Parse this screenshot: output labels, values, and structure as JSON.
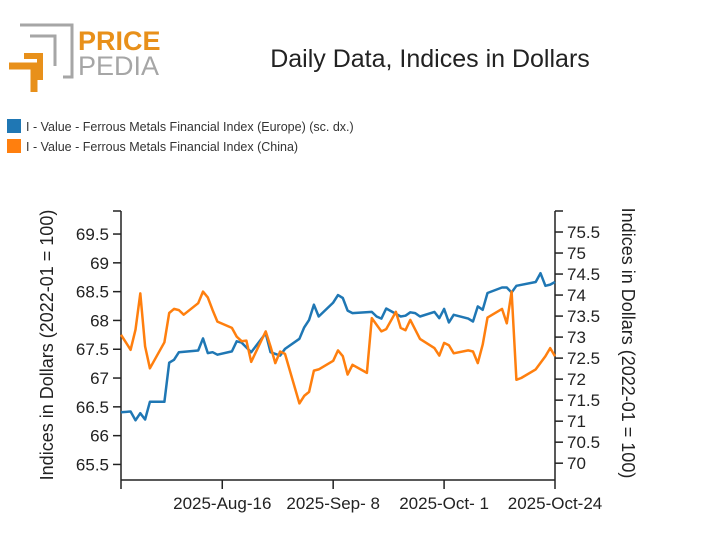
{
  "logo": {
    "text_top": "PRICE",
    "text_bottom": "PEDIA",
    "colors": {
      "orange": "#e8901a",
      "gray": "#a6a6a6"
    }
  },
  "chart_data": {
    "type": "line",
    "title": "Daily Data, Indices in Dollars",
    "ylabel_left": "Indices in Dollars (2022-01 = 100)",
    "ylabel_right": "Indices in Dollars (2022-01 = 100)",
    "xlim": [
      "2025-07-26",
      "2025-10-24"
    ],
    "ylim_left": [
      65.23,
      69.9
    ],
    "ylim_right": [
      69.6,
      76.0
    ],
    "x_ticks": [
      {
        "date": "2025-07-26",
        "label": ""
      },
      {
        "date": "2025-08-16",
        "label": "2025-Aug-16"
      },
      {
        "date": "2025-09-08",
        "label": "2025-Sep- 8"
      },
      {
        "date": "2025-10-01",
        "label": "2025-Oct- 1"
      },
      {
        "date": "2025-10-24",
        "label": "2025-Oct-24"
      }
    ],
    "y_ticks_left": [
      "65.5",
      "66",
      "66.5",
      "67",
      "67.5",
      "68",
      "68.5",
      "69",
      "69.5"
    ],
    "y_ticks_right": [
      "70",
      "70.5",
      "71",
      "71.5",
      "72",
      "72.5",
      "73",
      "73.5",
      "74",
      "74.5",
      "75",
      "75.5"
    ],
    "grid": false,
    "legend_position": "top-left",
    "series": [
      {
        "name": "I - Value - Ferrous Metals Financial Index (Europe) (sc. dx.)",
        "axis": "right",
        "color": "#1f77b4",
        "points": [
          [
            "2025-07-26",
            71.21
          ],
          [
            "2025-07-28",
            71.23
          ],
          [
            "2025-07-29",
            71.02
          ],
          [
            "2025-07-30",
            71.19
          ],
          [
            "2025-07-31",
            71.04
          ],
          [
            "2025-08-01",
            71.46
          ],
          [
            "2025-08-04",
            71.46
          ],
          [
            "2025-08-05",
            72.39
          ],
          [
            "2025-08-06",
            72.46
          ],
          [
            "2025-08-07",
            72.64
          ],
          [
            "2025-08-11",
            72.68
          ],
          [
            "2025-08-12",
            72.97
          ],
          [
            "2025-08-13",
            72.62
          ],
          [
            "2025-08-14",
            72.64
          ],
          [
            "2025-08-15",
            72.58
          ],
          [
            "2025-08-18",
            72.66
          ],
          [
            "2025-08-19",
            72.9
          ],
          [
            "2025-08-20",
            72.87
          ],
          [
            "2025-08-22",
            72.64
          ],
          [
            "2025-08-25",
            73.09
          ],
          [
            "2025-08-26",
            72.64
          ],
          [
            "2025-08-28",
            72.56
          ],
          [
            "2025-08-29",
            72.72
          ],
          [
            "2025-09-01",
            72.96
          ],
          [
            "2025-09-02",
            73.23
          ],
          [
            "2025-09-03",
            73.41
          ],
          [
            "2025-09-04",
            73.77
          ],
          [
            "2025-09-05",
            73.49
          ],
          [
            "2025-09-08",
            73.82
          ],
          [
            "2025-09-09",
            74.0
          ],
          [
            "2025-09-10",
            73.93
          ],
          [
            "2025-09-11",
            73.63
          ],
          [
            "2025-09-12",
            73.57
          ],
          [
            "2025-09-16",
            73.6
          ],
          [
            "2025-09-17",
            73.49
          ],
          [
            "2025-09-18",
            73.44
          ],
          [
            "2025-09-19",
            73.68
          ],
          [
            "2025-09-22",
            73.49
          ],
          [
            "2025-09-23",
            73.51
          ],
          [
            "2025-09-24",
            73.59
          ],
          [
            "2025-09-25",
            73.57
          ],
          [
            "2025-09-26",
            73.49
          ],
          [
            "2025-09-29",
            73.6
          ],
          [
            "2025-09-30",
            73.45
          ],
          [
            "2025-10-01",
            73.67
          ],
          [
            "2025-10-02",
            73.35
          ],
          [
            "2025-10-03",
            73.53
          ],
          [
            "2025-10-06",
            73.44
          ],
          [
            "2025-10-07",
            73.37
          ],
          [
            "2025-10-08",
            73.73
          ],
          [
            "2025-10-09",
            73.65
          ],
          [
            "2025-10-10",
            74.05
          ],
          [
            "2025-10-13",
            74.18
          ],
          [
            "2025-10-14",
            74.18
          ],
          [
            "2025-10-15",
            74.06
          ],
          [
            "2025-10-16",
            74.22
          ],
          [
            "2025-10-20",
            74.31
          ],
          [
            "2025-10-21",
            74.52
          ],
          [
            "2025-10-22",
            74.22
          ],
          [
            "2025-10-23",
            74.25
          ],
          [
            "2025-10-24",
            74.31
          ]
        ]
      },
      {
        "name": "I - Value - Ferrous Metals Financial Index (China)",
        "axis": "left",
        "color": "#ff7f0e",
        "points": [
          [
            "2025-07-26",
            67.75
          ],
          [
            "2025-07-28",
            67.49
          ],
          [
            "2025-07-29",
            67.84
          ],
          [
            "2025-07-30",
            68.47
          ],
          [
            "2025-07-31",
            67.55
          ],
          [
            "2025-08-01",
            67.17
          ],
          [
            "2025-08-04",
            67.62
          ],
          [
            "2025-08-05",
            68.13
          ],
          [
            "2025-08-06",
            68.2
          ],
          [
            "2025-08-07",
            68.18
          ],
          [
            "2025-08-08",
            68.1
          ],
          [
            "2025-08-11",
            68.3
          ],
          [
            "2025-08-12",
            68.5
          ],
          [
            "2025-08-13",
            68.4
          ],
          [
            "2025-08-14",
            68.18
          ],
          [
            "2025-08-15",
            67.98
          ],
          [
            "2025-08-18",
            67.87
          ],
          [
            "2025-08-19",
            67.72
          ],
          [
            "2025-08-20",
            67.64
          ],
          [
            "2025-08-21",
            67.65
          ],
          [
            "2025-08-22",
            67.28
          ],
          [
            "2025-08-25",
            67.81
          ],
          [
            "2025-08-26",
            67.55
          ],
          [
            "2025-08-27",
            67.26
          ],
          [
            "2025-08-28",
            67.46
          ],
          [
            "2025-08-29",
            67.42
          ],
          [
            "2025-09-01",
            66.56
          ],
          [
            "2025-09-02",
            66.69
          ],
          [
            "2025-09-03",
            66.76
          ],
          [
            "2025-09-04",
            67.13
          ],
          [
            "2025-09-05",
            67.15
          ],
          [
            "2025-09-08",
            67.3
          ],
          [
            "2025-09-09",
            67.48
          ],
          [
            "2025-09-10",
            67.38
          ],
          [
            "2025-09-11",
            67.06
          ],
          [
            "2025-09-12",
            67.23
          ],
          [
            "2025-09-15",
            67.09
          ],
          [
            "2025-09-16",
            68.04
          ],
          [
            "2025-09-18",
            67.81
          ],
          [
            "2025-09-19",
            67.85
          ],
          [
            "2025-09-21",
            68.15
          ],
          [
            "2025-09-22",
            67.87
          ],
          [
            "2025-09-23",
            67.83
          ],
          [
            "2025-09-24",
            68.01
          ],
          [
            "2025-09-26",
            67.68
          ],
          [
            "2025-09-29",
            67.52
          ],
          [
            "2025-09-30",
            67.39
          ],
          [
            "2025-10-01",
            67.61
          ],
          [
            "2025-10-02",
            67.57
          ],
          [
            "2025-10-03",
            67.43
          ],
          [
            "2025-10-06",
            67.48
          ],
          [
            "2025-10-07",
            67.46
          ],
          [
            "2025-10-08",
            67.26
          ],
          [
            "2025-10-09",
            67.58
          ],
          [
            "2025-10-10",
            68.05
          ],
          [
            "2025-10-13",
            68.2
          ],
          [
            "2025-10-14",
            67.95
          ],
          [
            "2025-10-15",
            68.5
          ],
          [
            "2025-10-16",
            66.97
          ],
          [
            "2025-10-17",
            67.0
          ],
          [
            "2025-10-20",
            67.15
          ],
          [
            "2025-10-22",
            67.38
          ],
          [
            "2025-10-23",
            67.52
          ],
          [
            "2025-10-24",
            67.38
          ]
        ]
      }
    ]
  }
}
